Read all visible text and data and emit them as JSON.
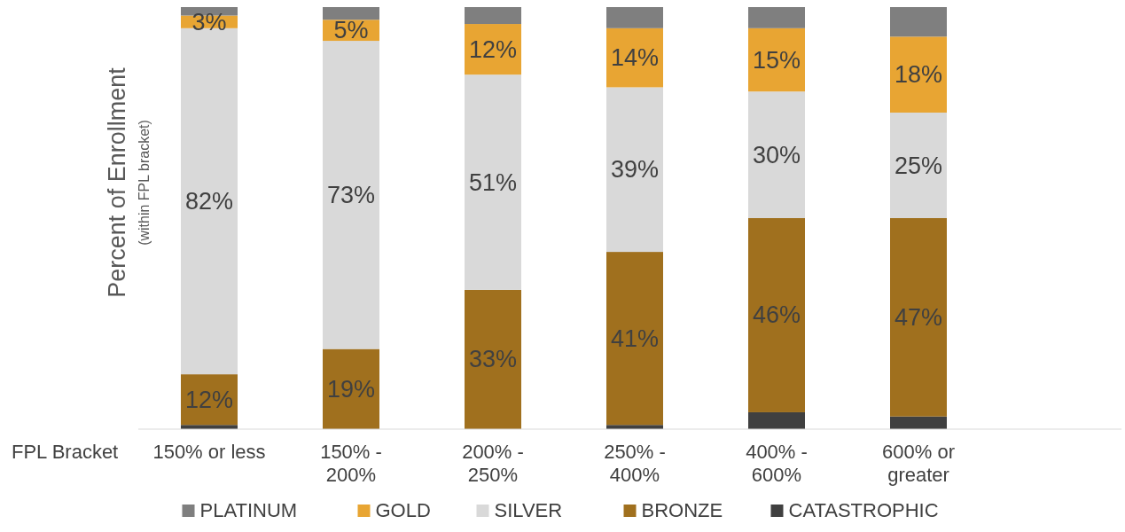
{
  "chart_data": {
    "type": "bar",
    "stacked": true,
    "xlabel": "FPL Bracket",
    "ylabel": "Percent of Enrollment",
    "subtitle": "(within FPL bracket)",
    "categories": [
      "150% or less",
      "150% -\n200%",
      "200% -\n250%",
      "250% -\n400%",
      "400% -\n600%",
      "600% or\ngreater"
    ],
    "ylim": [
      0,
      100
    ],
    "tick_labels": "x",
    "legend": "bottom",
    "series": [
      {
        "name": "CATASTROPHIC",
        "color": "#404040",
        "values": [
          1,
          0,
          0,
          1,
          4,
          3
        ],
        "value_labels": [
          null,
          null,
          null,
          null,
          null,
          null
        ]
      },
      {
        "name": "BRONZE",
        "color": "#a0701e",
        "values": [
          12,
          19,
          33,
          41,
          46,
          47
        ],
        "value_labels": [
          "12%",
          "19%",
          "33%",
          "41%",
          "46%",
          "47%"
        ]
      },
      {
        "name": "SILVER",
        "color": "#d9d9d9",
        "values": [
          82,
          73,
          51,
          39,
          30,
          25
        ],
        "value_labels": [
          "82%",
          "73%",
          "51%",
          "39%",
          "30%",
          "25%"
        ]
      },
      {
        "name": "GOLD",
        "color": "#e8a533",
        "values": [
          3,
          5,
          12,
          14,
          15,
          18
        ],
        "value_labels": [
          "3%",
          "5%",
          "12%",
          "14%",
          "15%",
          "18%"
        ]
      },
      {
        "name": "PLATINUM",
        "color": "#7f7f7f",
        "values": [
          2,
          3,
          4,
          5,
          5,
          7
        ],
        "value_labels": [
          null,
          null,
          null,
          null,
          null,
          null
        ]
      }
    ]
  }
}
